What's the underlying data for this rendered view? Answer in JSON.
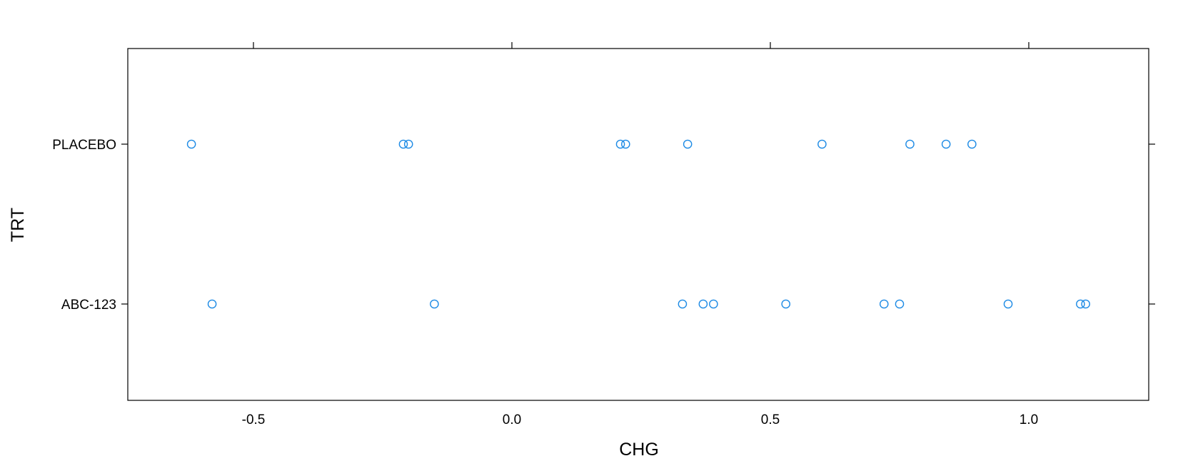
{
  "chart_data": {
    "type": "scatter",
    "title": "",
    "xlabel": "CHG",
    "ylabel": "TRT",
    "xlim": [
      -0.75,
      1.23
    ],
    "x_ticks": [
      -0.5,
      0.0,
      0.5,
      1.0
    ],
    "x_tick_labels": [
      "-0.5",
      "0.0",
      "0.5",
      "1.0"
    ],
    "categories": [
      "ABC-123",
      "PLACEBO"
    ],
    "grid": false,
    "legend": "none",
    "marker": "open-circle",
    "color": "#1E8BE5",
    "series": [
      {
        "category": "PLACEBO",
        "values": [
          -0.62,
          -0.21,
          -0.2,
          0.21,
          0.22,
          0.34,
          0.6,
          0.77,
          0.84,
          0.89
        ]
      },
      {
        "category": "ABC-123",
        "values": [
          -0.58,
          -0.15,
          0.33,
          0.37,
          0.39,
          0.53,
          0.72,
          0.75,
          0.96,
          1.1,
          1.11
        ]
      }
    ]
  }
}
